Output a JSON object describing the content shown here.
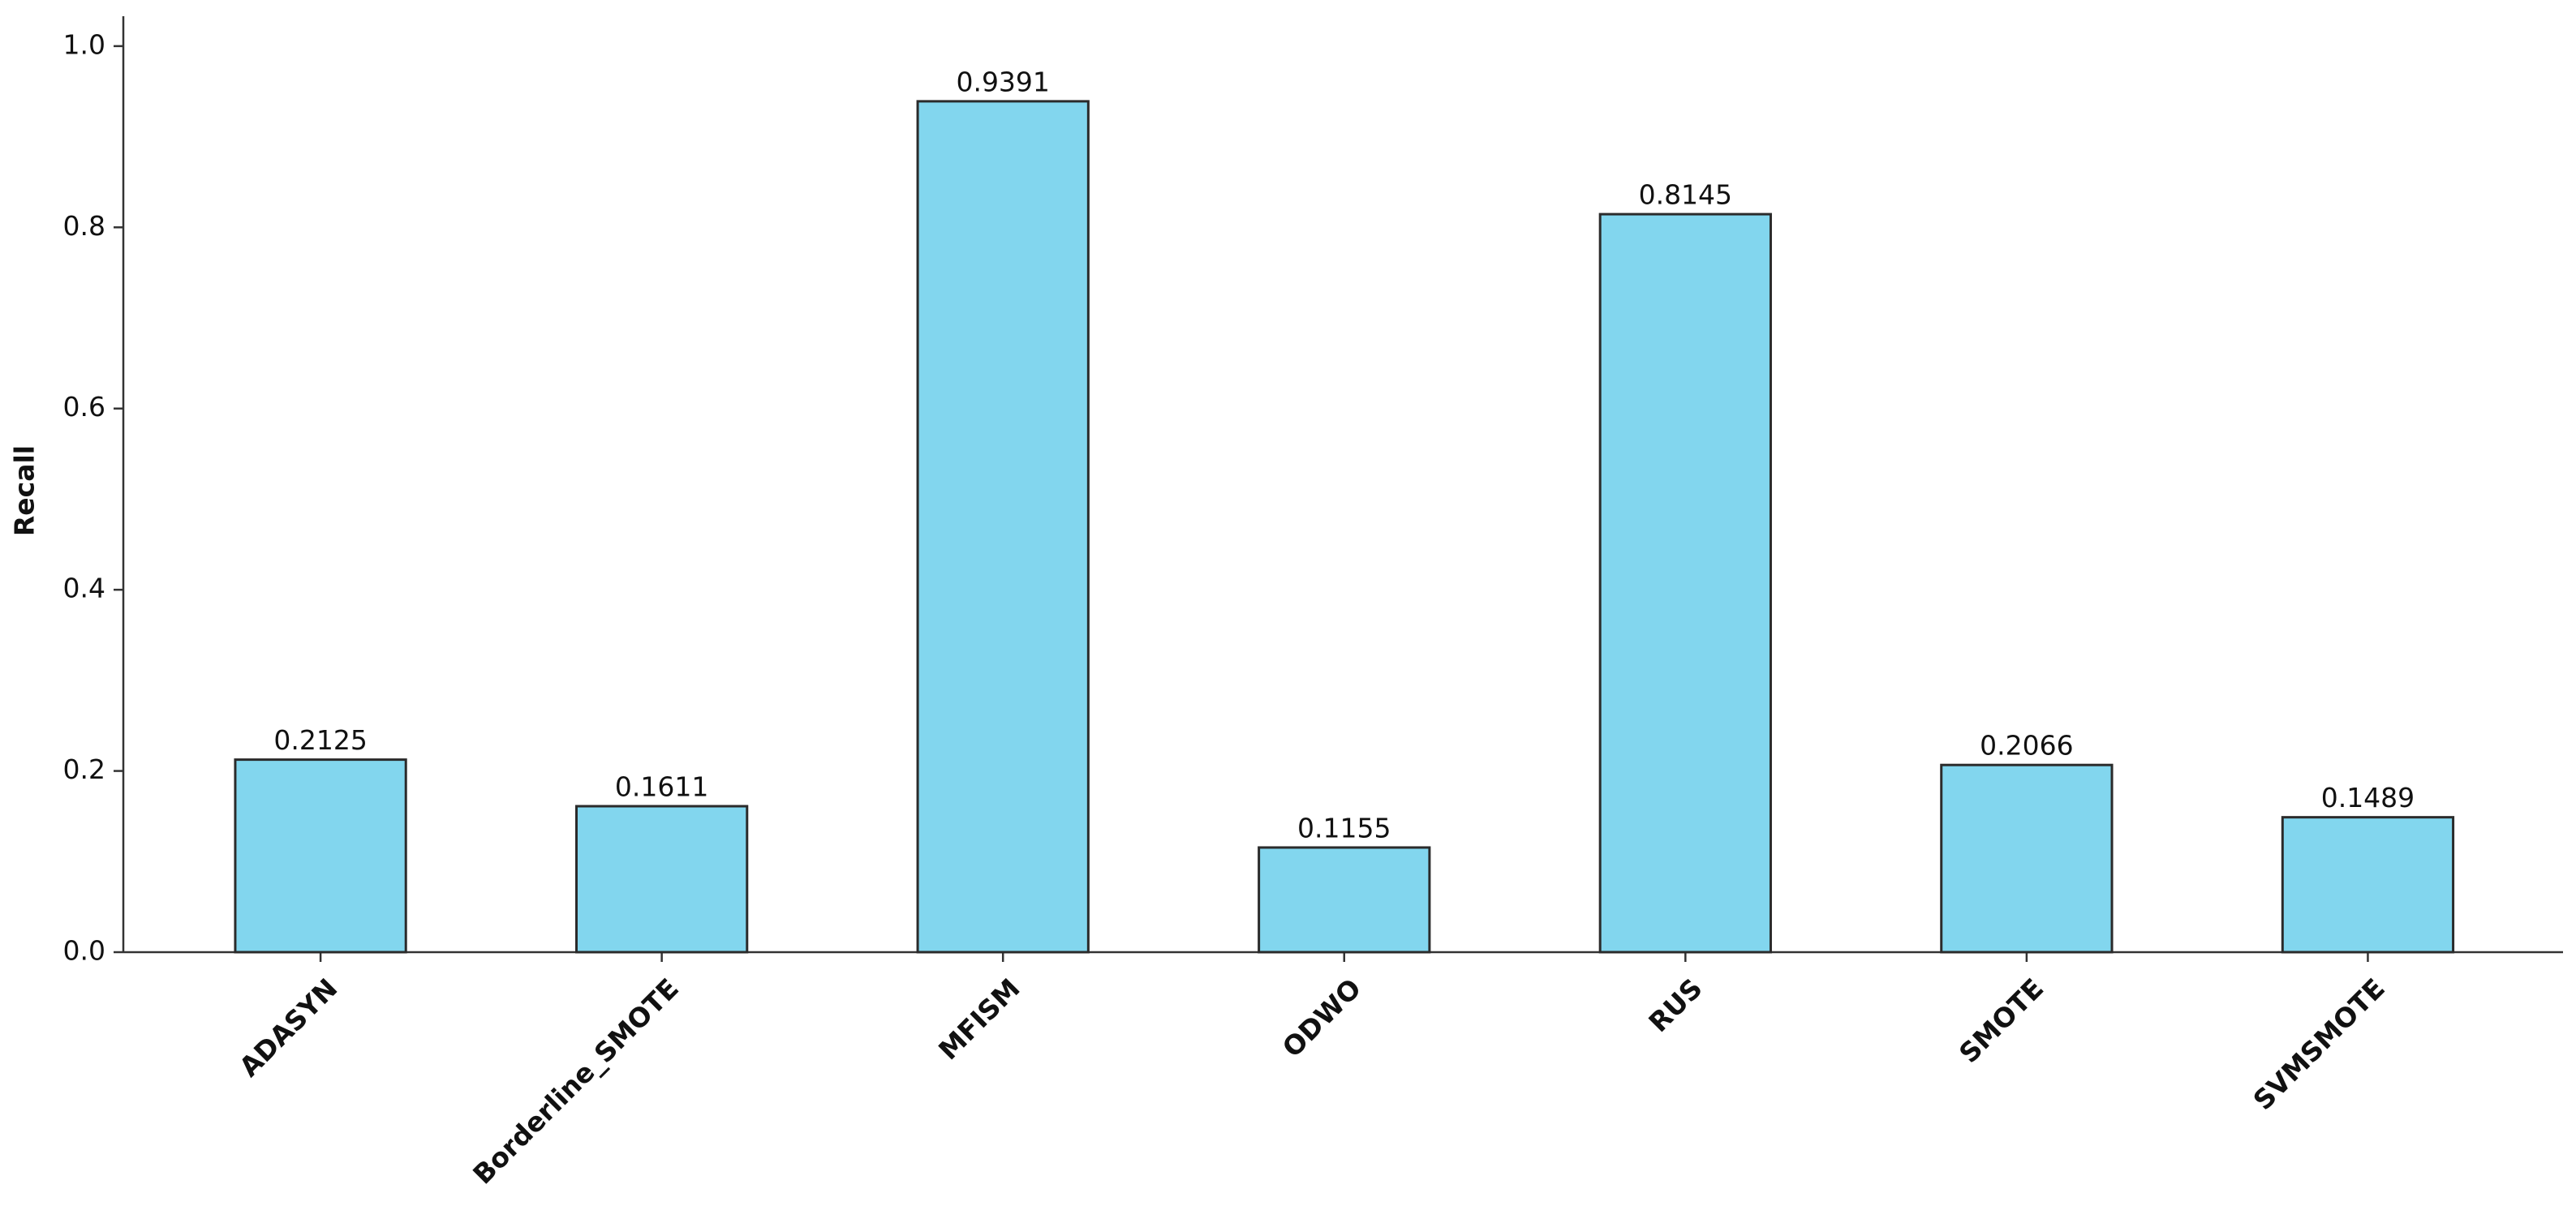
{
  "chart_data": {
    "type": "bar",
    "y_label": "Recall",
    "categories": [
      "ADASYN",
      "Borderline_SMOTE",
      "MFISM",
      "ODWO",
      "RUS",
      "SMOTE",
      "SVMSMOTE"
    ],
    "values": [
      0.2125,
      0.1611,
      0.9391,
      0.1155,
      0.8145,
      0.2066,
      0.1489
    ],
    "color": "#82d6ee",
    "edge_color": "#2b2b2b",
    "ylim": [
      0,
      1.033
    ],
    "yticks": [
      {
        "value": 0,
        "label": "0.0"
      },
      0.2,
      0.4,
      0.6,
      0.8,
      {
        "value": 1,
        "label": "1.0"
      }
    ],
    "grid": false
  }
}
